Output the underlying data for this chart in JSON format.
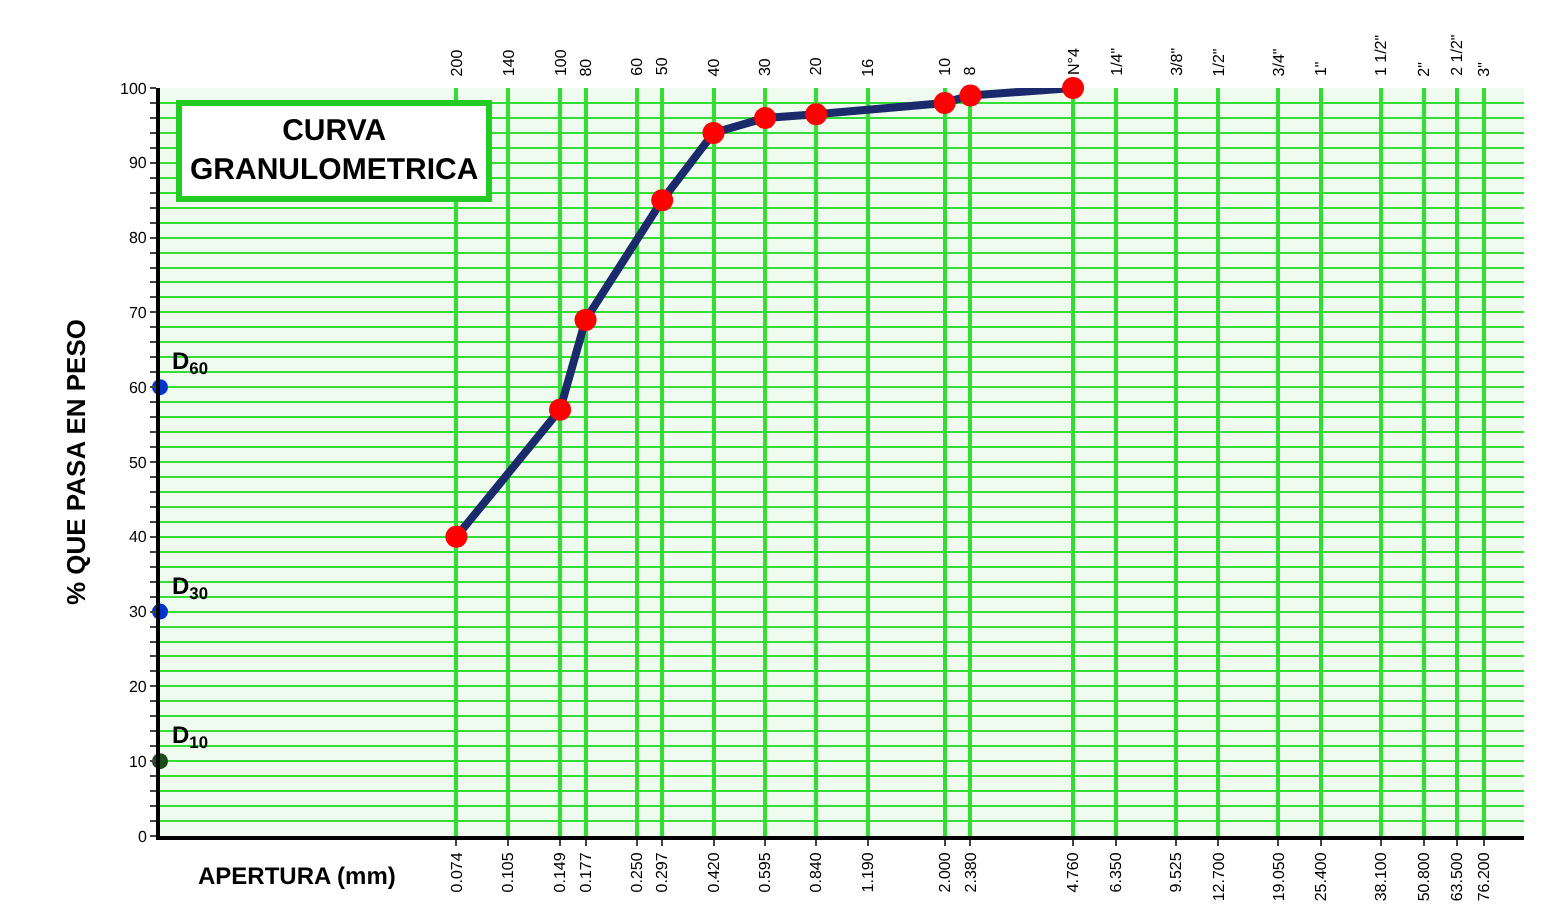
{
  "chart_data": {
    "type": "line",
    "title": "CURVA GRANULOMETRICA",
    "xlabel": "APERTURA (mm)",
    "ylabel": "% QUE PASA EN PESO",
    "log": "x",
    "grid": true,
    "marker": "circle",
    "xlim": [
      0.01,
      100
    ],
    "ylim": [
      0,
      100
    ],
    "xticks": [
      {
        "value": 0.074,
        "label": "0.074"
      },
      {
        "value": 0.105,
        "label": "0.105"
      },
      {
        "value": 0.149,
        "label": "0.149"
      },
      {
        "value": 0.177,
        "label": "0.177"
      },
      {
        "value": 0.25,
        "label": "0.250"
      },
      {
        "value": 0.297,
        "label": "0.297"
      },
      {
        "value": 0.42,
        "label": "0.420"
      },
      {
        "value": 0.595,
        "label": "0.595"
      },
      {
        "value": 0.84,
        "label": "0.840"
      },
      {
        "value": 1.19,
        "label": "1.190"
      },
      {
        "value": 2,
        "label": "2.000"
      },
      {
        "value": 2.38,
        "label": "2.380"
      },
      {
        "value": 4.76,
        "label": "4.760"
      },
      {
        "value": 6.35,
        "label": "6.350"
      },
      {
        "value": 9.525,
        "label": "9.525"
      },
      {
        "value": 12.7,
        "label": "12.700"
      },
      {
        "value": 19.05,
        "label": "19.050"
      },
      {
        "value": 25.4,
        "label": "25.400"
      },
      {
        "value": 38.1,
        "label": "38.100"
      },
      {
        "value": 50.8,
        "label": "50.800"
      },
      {
        "value": 63.5,
        "label": "63.500"
      },
      {
        "value": 76.2,
        "label": "76.200"
      }
    ],
    "yticks": [
      0,
      {
        "value": 2,
        "label": null
      },
      {
        "value": 4,
        "label": null
      },
      {
        "value": 6,
        "label": null
      },
      {
        "value": 8,
        "label": null
      },
      10,
      {
        "value": 12,
        "label": null
      },
      {
        "value": 14,
        "label": null
      },
      {
        "value": 16,
        "label": null
      },
      {
        "value": 18,
        "label": null
      },
      20,
      {
        "value": 22,
        "label": null
      },
      {
        "value": 24,
        "label": null
      },
      {
        "value": 26,
        "label": null
      },
      {
        "value": 28,
        "label": null
      },
      30,
      {
        "value": 32,
        "label": null
      },
      {
        "value": 34,
        "label": null
      },
      {
        "value": 36,
        "label": null
      },
      {
        "value": 38,
        "label": null
      },
      40,
      {
        "value": 42,
        "label": null
      },
      {
        "value": 44,
        "label": null
      },
      {
        "value": 46,
        "label": null
      },
      {
        "value": 48,
        "label": null
      },
      50,
      {
        "value": 52,
        "label": null
      },
      {
        "value": 54,
        "label": null
      },
      {
        "value": 56,
        "label": null
      },
      {
        "value": 58,
        "label": null
      },
      60,
      {
        "value": 62,
        "label": null
      },
      {
        "value": 64,
        "label": null
      },
      {
        "value": 66,
        "label": null
      },
      {
        "value": 68,
        "label": null
      },
      70,
      {
        "value": 72,
        "label": null
      },
      {
        "value": 74,
        "label": null
      },
      {
        "value": 76,
        "label": null
      },
      {
        "value": 78,
        "label": null
      },
      80,
      {
        "value": 82,
        "label": null
      },
      {
        "value": 84,
        "label": null
      },
      {
        "value": 86,
        "label": null
      },
      {
        "value": 88,
        "label": null
      },
      90,
      {
        "value": 92,
        "label": null
      },
      {
        "value": 94,
        "label": null
      },
      {
        "value": 96,
        "label": null
      },
      {
        "value": 98,
        "label": null
      },
      100
    ],
    "series": [
      {
        "color": "#1b2a6b",
        "colors": [
          "#ff0000",
          "#ff0000",
          "#ff0000",
          "#ff0000",
          "#ff0000",
          "#ff0000",
          "#ff0000",
          "#ff0000",
          "#ff0000",
          "#ff0000"
        ],
        "x": [
          0.074,
          0.149,
          0.177,
          0.297,
          0.42,
          0.595,
          0.84,
          2,
          2.38,
          4.76
        ],
        "values": [
          40,
          57,
          69,
          85,
          94,
          96,
          96.5,
          98,
          99,
          100
        ]
      },
      {
        "type": "scatter",
        "colors": [
          "#0033cc",
          "#0033cc",
          "#1a4d1a"
        ],
        "x": [
          0.01,
          0.01,
          0.01
        ],
        "values": [
          60,
          30,
          10
        ],
        "value_labels": [
          "D$_{60}$",
          "D$_{30}$",
          "D$_{10}$"
        ]
      }
    ],
    "annotations": [
      "200",
      "140",
      "100",
      "80",
      "60",
      "50",
      "40",
      "30",
      "20",
      "16",
      "10",
      "8",
      "N°4",
      "1/4\"",
      "3/8\"",
      "1/2\"",
      "3/4\"",
      "1\"",
      "1 1/2\"",
      "2\"",
      "2 1/2\"",
      "3\""
    ]
  }
}
